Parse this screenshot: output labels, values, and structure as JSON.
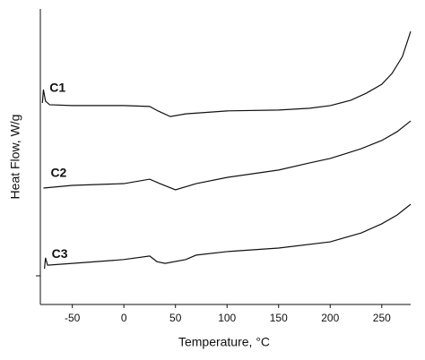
{
  "chart_data": {
    "type": "line",
    "xlabel": "Temperature, °C",
    "ylabel": "Heat Flow, W/g",
    "xlim": [
      -81,
      278
    ],
    "ylim": [
      0,
      100
    ],
    "xticks": [
      -50,
      0,
      50,
      100,
      150,
      200,
      250
    ],
    "series": [
      {
        "name": "C1",
        "color": "#111111",
        "x": [
          -79,
          -78,
          -76,
          -72,
          -50,
          0,
          25,
          33,
          45,
          60,
          100,
          150,
          180,
          200,
          220,
          235,
          250,
          260,
          270,
          278
        ],
        "values": [
          68.2,
          72.7,
          68.8,
          67.6,
          67.3,
          67.3,
          67.0,
          65.5,
          63.6,
          64.5,
          65.5,
          65.8,
          66.4,
          67.3,
          69.1,
          71.5,
          74.5,
          78.2,
          83.9,
          92.4
        ]
      },
      {
        "name": "C2",
        "color": "#111111",
        "x": [
          -78,
          -50,
          0,
          25,
          35,
          50,
          70,
          100,
          150,
          180,
          200,
          230,
          250,
          265,
          278
        ],
        "values": [
          39.4,
          40.3,
          40.9,
          42.4,
          40.9,
          38.8,
          40.9,
          43.0,
          45.5,
          47.9,
          49.4,
          52.7,
          55.5,
          58.5,
          62.1
        ]
      },
      {
        "name": "C3",
        "color": "#111111",
        "x": [
          -77,
          -76,
          -74,
          -50,
          0,
          25,
          32,
          40,
          60,
          70,
          100,
          150,
          200,
          230,
          250,
          265,
          278
        ],
        "values": [
          12.1,
          15.8,
          13.3,
          13.9,
          15.2,
          16.4,
          14.5,
          13.9,
          15.2,
          16.7,
          17.9,
          19.1,
          21.2,
          24.2,
          27.3,
          30.3,
          33.9
        ]
      }
    ]
  }
}
